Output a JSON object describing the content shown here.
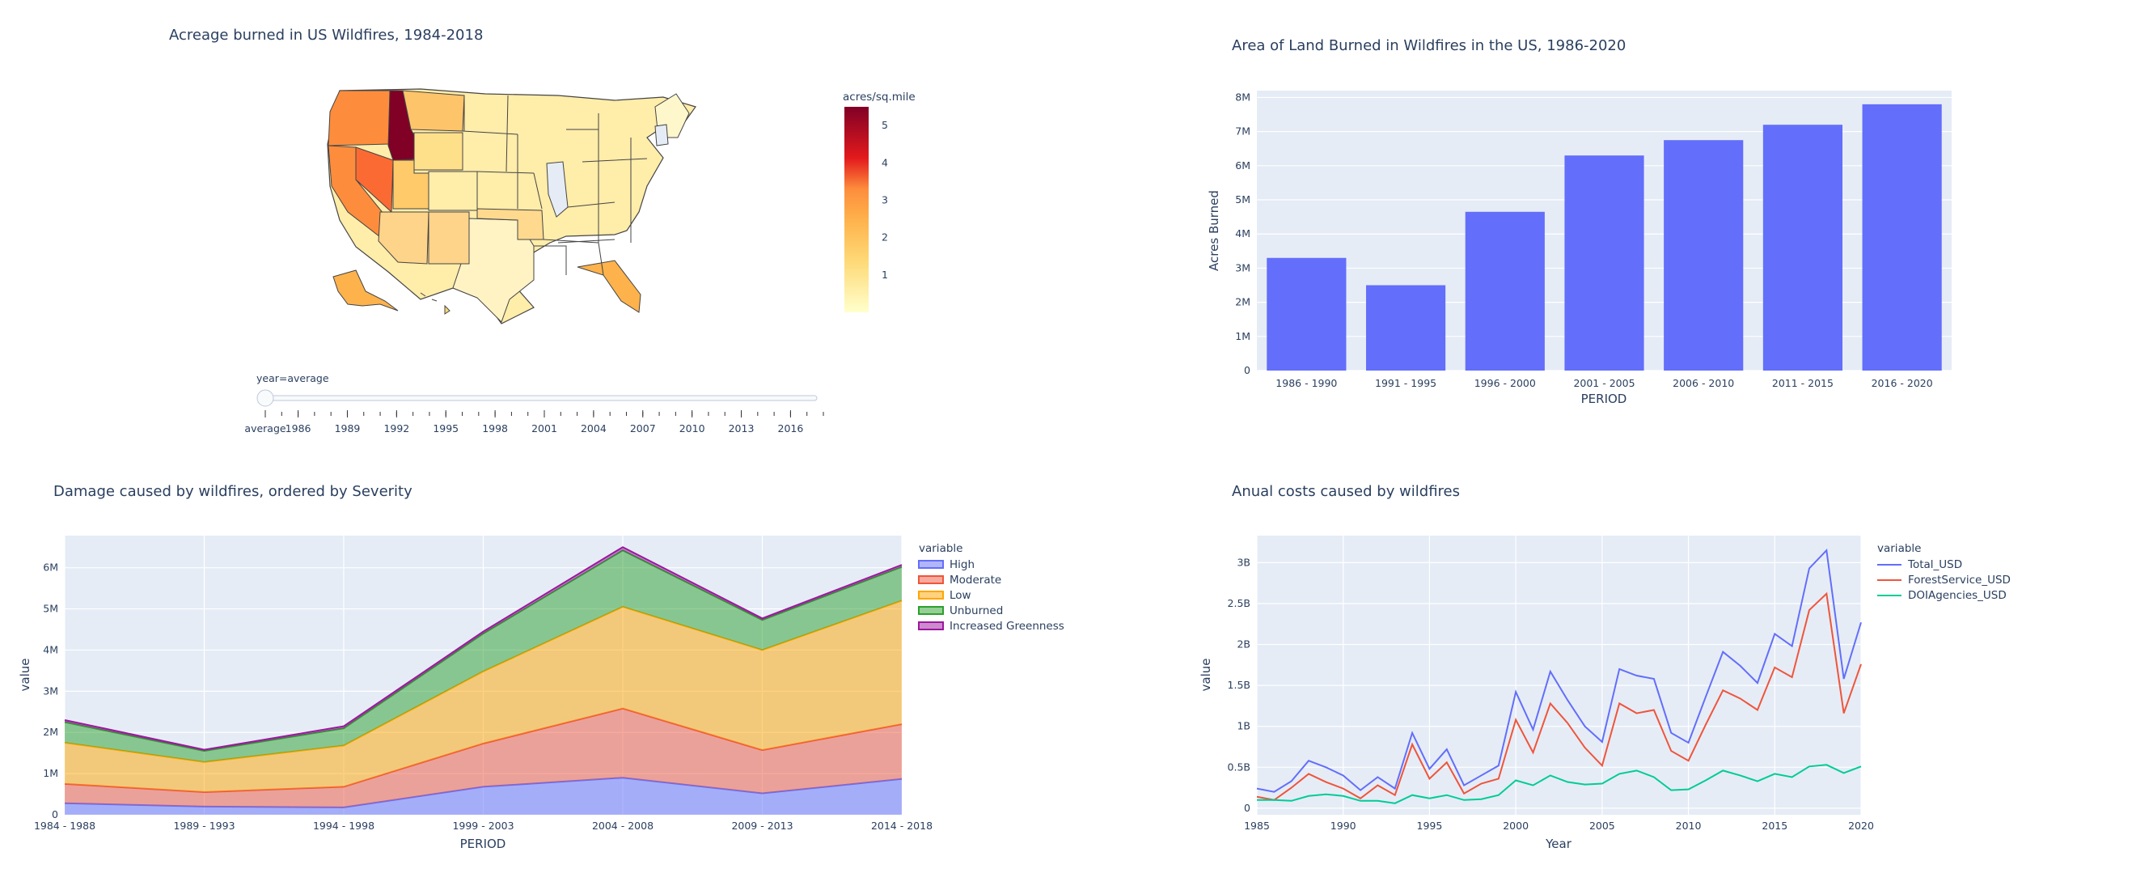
{
  "colors": {
    "plot_bg": "#e5ecf6",
    "bar": "#636efa",
    "high": "#636efa",
    "moderate": "#ef553b",
    "low": "#ffa600",
    "unburned": "#2ca02c",
    "increased_greenness": "#9c179e",
    "total": "#636efa",
    "forest": "#ef553b",
    "doi": "#00cc96"
  },
  "chart_data": [
    {
      "type": "choropleth",
      "title": "Acreage burned in US Wildfires, 1984-2018",
      "colorbar_title": "acres/sq.mile",
      "colorbar_ticks": [
        "1",
        "2",
        "3",
        "4",
        "5"
      ],
      "colorbar_range": [
        0,
        5.5
      ],
      "colorscale": [
        "#ffffcc",
        "#ffeda0",
        "#fed976",
        "#feb24c",
        "#fd8d3c",
        "#fc4e2a",
        "#e31a1c",
        "#bd0026",
        "#800026"
      ],
      "slider": {
        "current_label": "year=average",
        "labels": [
          "average",
          "1986",
          "1989",
          "1992",
          "1995",
          "1998",
          "2001",
          "2004",
          "2007",
          "2010",
          "2013",
          "2016"
        ]
      }
    },
    {
      "type": "bar",
      "title": "Area of Land Burned in Wildfires in the US, 1986-2020",
      "xlabel": "PERIOD",
      "ylabel": "Acres Burned",
      "categories": [
        "1986 - 1990",
        "1991 - 1995",
        "1996 - 2000",
        "2001 - 2005",
        "2006 - 2010",
        "2011 - 2015",
        "2016 - 2020"
      ],
      "values": [
        3300000,
        2500000,
        4650000,
        6300000,
        6750000,
        7200000,
        7800000
      ],
      "ylim": [
        0,
        8200000
      ],
      "yticks": [
        0,
        1000000,
        2000000,
        3000000,
        4000000,
        5000000,
        6000000,
        7000000,
        8000000
      ],
      "ytick_labels": [
        "0",
        "1M",
        "2M",
        "3M",
        "4M",
        "5M",
        "6M",
        "7M",
        "8M"
      ]
    },
    {
      "type": "area",
      "title": "Damage caused by wildfires, ordered by Severity",
      "xlabel": "PERIOD",
      "ylabel": "value",
      "legend_title": "variable",
      "categories": [
        "1984 - 1988",
        "1989 - 1993",
        "1994 - 1998",
        "1999 - 2003",
        "2004 - 2008",
        "2009 - 2013",
        "2014 - 2018"
      ],
      "series": [
        {
          "name": "High",
          "values": [
            280000,
            200000,
            180000,
            680000,
            900000,
            520000,
            870000
          ]
        },
        {
          "name": "Moderate",
          "values": [
            470000,
            350000,
            500000,
            1050000,
            1680000,
            1050000,
            1330000
          ]
        },
        {
          "name": "Low",
          "values": [
            1000000,
            730000,
            1000000,
            1750000,
            2470000,
            2430000,
            3000000
          ]
        },
        {
          "name": "Unburned",
          "values": [
            500000,
            270000,
            420000,
            920000,
            1370000,
            730000,
            820000
          ]
        },
        {
          "name": "Increased Greenness",
          "values": [
            50000,
            30000,
            50000,
            50000,
            80000,
            40000,
            50000
          ]
        }
      ],
      "ylim": [
        0,
        6780000
      ],
      "yticks": [
        0,
        1000000,
        2000000,
        3000000,
        4000000,
        5000000,
        6000000
      ],
      "ytick_labels": [
        "0",
        "1M",
        "2M",
        "3M",
        "4M",
        "5M",
        "6M"
      ]
    },
    {
      "type": "line",
      "title": "Anual costs caused by wildfires",
      "xlabel": "Year",
      "ylabel": "value",
      "legend_title": "variable",
      "x": [
        1985,
        1986,
        1987,
        1988,
        1989,
        1990,
        1991,
        1992,
        1993,
        1994,
        1995,
        1996,
        1997,
        1998,
        1999,
        2000,
        2001,
        2002,
        2003,
        2004,
        2005,
        2006,
        2007,
        2008,
        2009,
        2010,
        2011,
        2012,
        2013,
        2014,
        2015,
        2016,
        2017,
        2018,
        2019,
        2020
      ],
      "series": [
        {
          "name": "Total_USD",
          "values": [
            240000000,
            200000000,
            330000000,
            580000000,
            500000000,
            400000000,
            220000000,
            380000000,
            240000000,
            920000000,
            480000000,
            720000000,
            280000000,
            400000000,
            520000000,
            1420000000,
            960000000,
            1670000000,
            1320000000,
            1000000000,
            810000000,
            1700000000,
            1620000000,
            1580000000,
            920000000,
            800000000,
            1360000000,
            1910000000,
            1740000000,
            1530000000,
            2130000000,
            1980000000,
            2930000000,
            3150000000,
            1580000000,
            2270000000
          ]
        },
        {
          "name": "ForestService_USD",
          "values": [
            140000000,
            100000000,
            250000000,
            420000000,
            320000000,
            240000000,
            120000000,
            280000000,
            160000000,
            780000000,
            360000000,
            560000000,
            180000000,
            300000000,
            360000000,
            1080000000,
            680000000,
            1280000000,
            1040000000,
            740000000,
            520000000,
            1280000000,
            1160000000,
            1200000000,
            700000000,
            580000000,
            1020000000,
            1440000000,
            1340000000,
            1200000000,
            1720000000,
            1600000000,
            2420000000,
            2620000000,
            1160000000,
            1760000000
          ]
        },
        {
          "name": "DOIAgencies_USD",
          "values": [
            100000000,
            100000000,
            90000000,
            150000000,
            170000000,
            150000000,
            90000000,
            90000000,
            60000000,
            160000000,
            120000000,
            160000000,
            100000000,
            110000000,
            160000000,
            340000000,
            280000000,
            400000000,
            320000000,
            290000000,
            300000000,
            420000000,
            460000000,
            380000000,
            220000000,
            230000000,
            340000000,
            460000000,
            400000000,
            330000000,
            420000000,
            380000000,
            510000000,
            530000000,
            430000000,
            510000000
          ]
        }
      ],
      "xlim": [
        1985,
        2020
      ],
      "xticks": [
        1985,
        1990,
        1995,
        2000,
        2005,
        2010,
        2015,
        2020
      ],
      "ylim": [
        -80000000,
        3330000000
      ],
      "yticks": [
        0,
        500000000,
        1000000000,
        1500000000,
        2000000000,
        2500000000,
        3000000000
      ],
      "ytick_labels": [
        "0",
        "0.5B",
        "1B",
        "1.5B",
        "2B",
        "2.5B",
        "3B"
      ]
    }
  ]
}
